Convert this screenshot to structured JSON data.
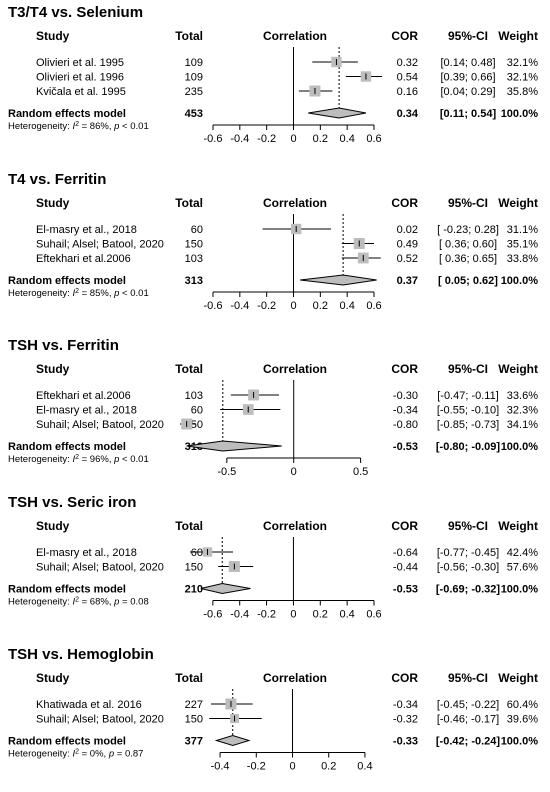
{
  "chart_data": [
    {
      "type": "forest",
      "title": "T3/T4 vs. Selenium",
      "columns": {
        "study": "Study",
        "total": "Total",
        "correlation": "Correlation",
        "cor": "COR",
        "ci": "95%-CI",
        "weight": "Weight"
      },
      "xlim": [
        -0.6,
        0.6
      ],
      "ticks": [
        -0.6,
        -0.4,
        -0.2,
        0,
        0.2,
        0.4,
        0.6
      ],
      "tick_labels": [
        "-0.6",
        "-0.4",
        "-0.2",
        "0",
        "0.2",
        "0.4",
        "0.6"
      ],
      "studies": [
        {
          "name": "Olivieri et al. 1995",
          "total": "109",
          "cor": 0.32,
          "lo": 0.14,
          "hi": 0.48,
          "cor_label": "0.32",
          "ci_label": "[0.14; 0.48]",
          "weight_label": "32.1%",
          "weight": 32.1
        },
        {
          "name": "Olivieri et al. 1996",
          "total": "109",
          "cor": 0.54,
          "lo": 0.39,
          "hi": 0.66,
          "cor_label": "0.54",
          "ci_label": "[0.39; 0.66]",
          "weight_label": "32.1%",
          "weight": 32.1
        },
        {
          "name": "Kvičala et al. 1995",
          "total": "235",
          "cor": 0.16,
          "lo": 0.04,
          "hi": 0.29,
          "cor_label": "0.16",
          "ci_label": "[0.04; 0.29]",
          "weight_label": "35.8%",
          "weight": 35.8
        }
      ],
      "summary": {
        "label": "Random effects model",
        "total": "453",
        "cor": 0.34,
        "lo": 0.11,
        "hi": 0.54,
        "cor_label": "0.34",
        "ci_label": "[0.11; 0.54]",
        "weight_label": "100.0%"
      },
      "heterogeneity": {
        "prefix": "Heterogeneity: ",
        "i2_symbol": "I",
        "i2_sup": "2",
        "i2_value": " = 86%, ",
        "p_symbol": "p",
        "p_value": " < 0.01"
      }
    },
    {
      "type": "forest",
      "title": "T4 vs. Ferritin",
      "columns": {
        "study": "Study",
        "total": "Total",
        "correlation": "Correlation",
        "cor": "COR",
        "ci": "95%-CI",
        "weight": "Weight"
      },
      "xlim": [
        -0.6,
        0.6
      ],
      "ticks": [
        -0.6,
        -0.4,
        -0.2,
        0,
        0.2,
        0.4,
        0.6
      ],
      "tick_labels": [
        "-0.6",
        "-0.4",
        "-0.2",
        "0",
        "0.2",
        "0.4",
        "0.6"
      ],
      "studies": [
        {
          "name": "El-masry et al., 2018",
          "total": "60",
          "cor": 0.02,
          "lo": -0.23,
          "hi": 0.28,
          "cor_label": "0.02",
          "ci_label": "[ -0.23; 0.28]",
          "weight_label": "31.1%",
          "weight": 31.1
        },
        {
          "name": "Suhail; Alsel; Batool, 2020",
          "total": "150",
          "cor": 0.49,
          "lo": 0.36,
          "hi": 0.6,
          "cor_label": "0.49",
          "ci_label": "[ 0.36; 0.60]",
          "weight_label": "35.1%",
          "weight": 35.1
        },
        {
          "name": "Eftekhari et al.2006",
          "total": "103",
          "cor": 0.52,
          "lo": 0.36,
          "hi": 0.65,
          "cor_label": "0.52",
          "ci_label": "[ 0.36; 0.65]",
          "weight_label": "33.8%",
          "weight": 33.8
        }
      ],
      "summary": {
        "label": "Random effects model",
        "total": "313",
        "cor": 0.37,
        "lo": 0.05,
        "hi": 0.62,
        "cor_label": "0.37",
        "ci_label": "[ 0.05; 0.62]",
        "weight_label": "100.0%"
      },
      "heterogeneity": {
        "prefix": "Heterogeneity: ",
        "i2_symbol": "I",
        "i2_sup": "2",
        "i2_value": " = 85%, ",
        "p_symbol": "p",
        "p_value": " < 0.01"
      }
    },
    {
      "type": "forest",
      "title": "TSH vs. Ferritin",
      "columns": {
        "study": "Study",
        "total": "Total",
        "correlation": "Correlation",
        "cor": "COR",
        "ci": "95%-CI",
        "weight": "Weight"
      },
      "xlim": [
        -0.85,
        0.6
      ],
      "ticks": [
        -0.5,
        0,
        0.5
      ],
      "tick_labels": [
        "-0.5",
        "0",
        "0.5"
      ],
      "studies": [
        {
          "name": "Eftekhari et al.2006",
          "total": "103",
          "cor": -0.3,
          "lo": -0.47,
          "hi": -0.11,
          "cor_label": "-0.30",
          "ci_label": "[-0.47; -0.11]",
          "weight_label": "33.6%",
          "weight": 33.6
        },
        {
          "name": "El-masry et al., 2018",
          "total": "60",
          "cor": -0.34,
          "lo": -0.55,
          "hi": -0.1,
          "cor_label": "-0.34",
          "ci_label": "[-0.55; -0.10]",
          "weight_label": "32.3%",
          "weight": 32.3
        },
        {
          "name": "Suhail; Alsel; Batool, 2020",
          "total": "150",
          "cor": -0.8,
          "lo": -0.85,
          "hi": -0.73,
          "cor_label": "-0.80",
          "ci_label": "[-0.85; -0.73]",
          "weight_label": "34.1%",
          "weight": 34.1
        }
      ],
      "summary": {
        "label": "Random effects model",
        "total": "313",
        "cor": -0.53,
        "lo": -0.8,
        "hi": -0.09,
        "cor_label": "-0.53",
        "ci_label": "[-0.80; -0.09]",
        "weight_label": "100.0%"
      },
      "heterogeneity": {
        "prefix": "Heterogeneity: ",
        "i2_symbol": "I",
        "i2_sup": "2",
        "i2_value": " = 96%, ",
        "p_symbol": "p",
        "p_value": " < 0.01"
      }
    },
    {
      "type": "forest",
      "title": "TSH vs. Seric iron",
      "columns": {
        "study": "Study",
        "total": "Total",
        "correlation": "Correlation",
        "cor": "COR",
        "ci": "95%-CI",
        "weight": "Weight"
      },
      "xlim": [
        -0.8,
        0.6
      ],
      "ticks": [
        -0.6,
        -0.4,
        -0.2,
        0,
        0.2,
        0.4,
        0.6
      ],
      "tick_labels": [
        "-0.6",
        "-0.4",
        "-0.2",
        "0",
        "0.2",
        "0.4",
        "0.6"
      ],
      "studies": [
        {
          "name": "El-masry et al., 2018",
          "total": "60",
          "cor": -0.64,
          "lo": -0.77,
          "hi": -0.45,
          "cor_label": "-0.64",
          "ci_label": "[-0.77; -0.45]",
          "weight_label": "42.4%",
          "weight": 42.4
        },
        {
          "name": "Suhail; Alsel; Batool, 2020",
          "total": "150",
          "cor": -0.44,
          "lo": -0.56,
          "hi": -0.3,
          "cor_label": "-0.44",
          "ci_label": "[-0.56; -0.30]",
          "weight_label": "57.6%",
          "weight": 57.6
        }
      ],
      "summary": {
        "label": "Random effects model",
        "total": "210",
        "cor": -0.53,
        "lo": -0.69,
        "hi": -0.32,
        "cor_label": "-0.53",
        "ci_label": "[-0.69; -0.32]",
        "weight_label": "100.0%"
      },
      "heterogeneity": {
        "prefix": "Heterogeneity: ",
        "i2_symbol": "I",
        "i2_sup": "2",
        "i2_value": " = 68%, ",
        "p_symbol": "p",
        "p_value": " = 0.08"
      }
    },
    {
      "type": "forest",
      "title": "TSH vs. Hemoglobin",
      "columns": {
        "study": "Study",
        "total": "Total",
        "correlation": "Correlation",
        "cor": "COR",
        "ci": "95%-CI",
        "weight": "Weight"
      },
      "xlim": [
        -0.45,
        0.45
      ],
      "ticks": [
        -0.4,
        -0.2,
        0,
        0.2,
        0.4
      ],
      "tick_labels": [
        "-0.4",
        "-0.2",
        "0",
        "0.2",
        "0.4"
      ],
      "studies": [
        {
          "name": "Khatiwada et al. 2016",
          "total": "227",
          "cor": -0.34,
          "lo": -0.45,
          "hi": -0.22,
          "cor_label": "-0.34",
          "ci_label": "[-0.45; -0.22]",
          "weight_label": "60.4%",
          "weight": 60.4
        },
        {
          "name": "Suhail; Alsel; Batool, 2020",
          "total": "150",
          "cor": -0.32,
          "lo": -0.46,
          "hi": -0.17,
          "cor_label": "-0.32",
          "ci_label": "[-0.46; -0.17]",
          "weight_label": "39.6%",
          "weight": 39.6
        }
      ],
      "summary": {
        "label": "Random effects model",
        "total": "377",
        "cor": -0.33,
        "lo": -0.42,
        "hi": -0.24,
        "cor_label": "-0.33",
        "ci_label": "[-0.42; -0.24]",
        "weight_label": "100.0%"
      },
      "heterogeneity": {
        "prefix": "Heterogeneity: ",
        "i2_symbol": "I",
        "i2_sup": "2",
        "i2_value": " = 0%, ",
        "p_symbol": "p",
        "p_value": " = 0.87"
      }
    }
  ]
}
